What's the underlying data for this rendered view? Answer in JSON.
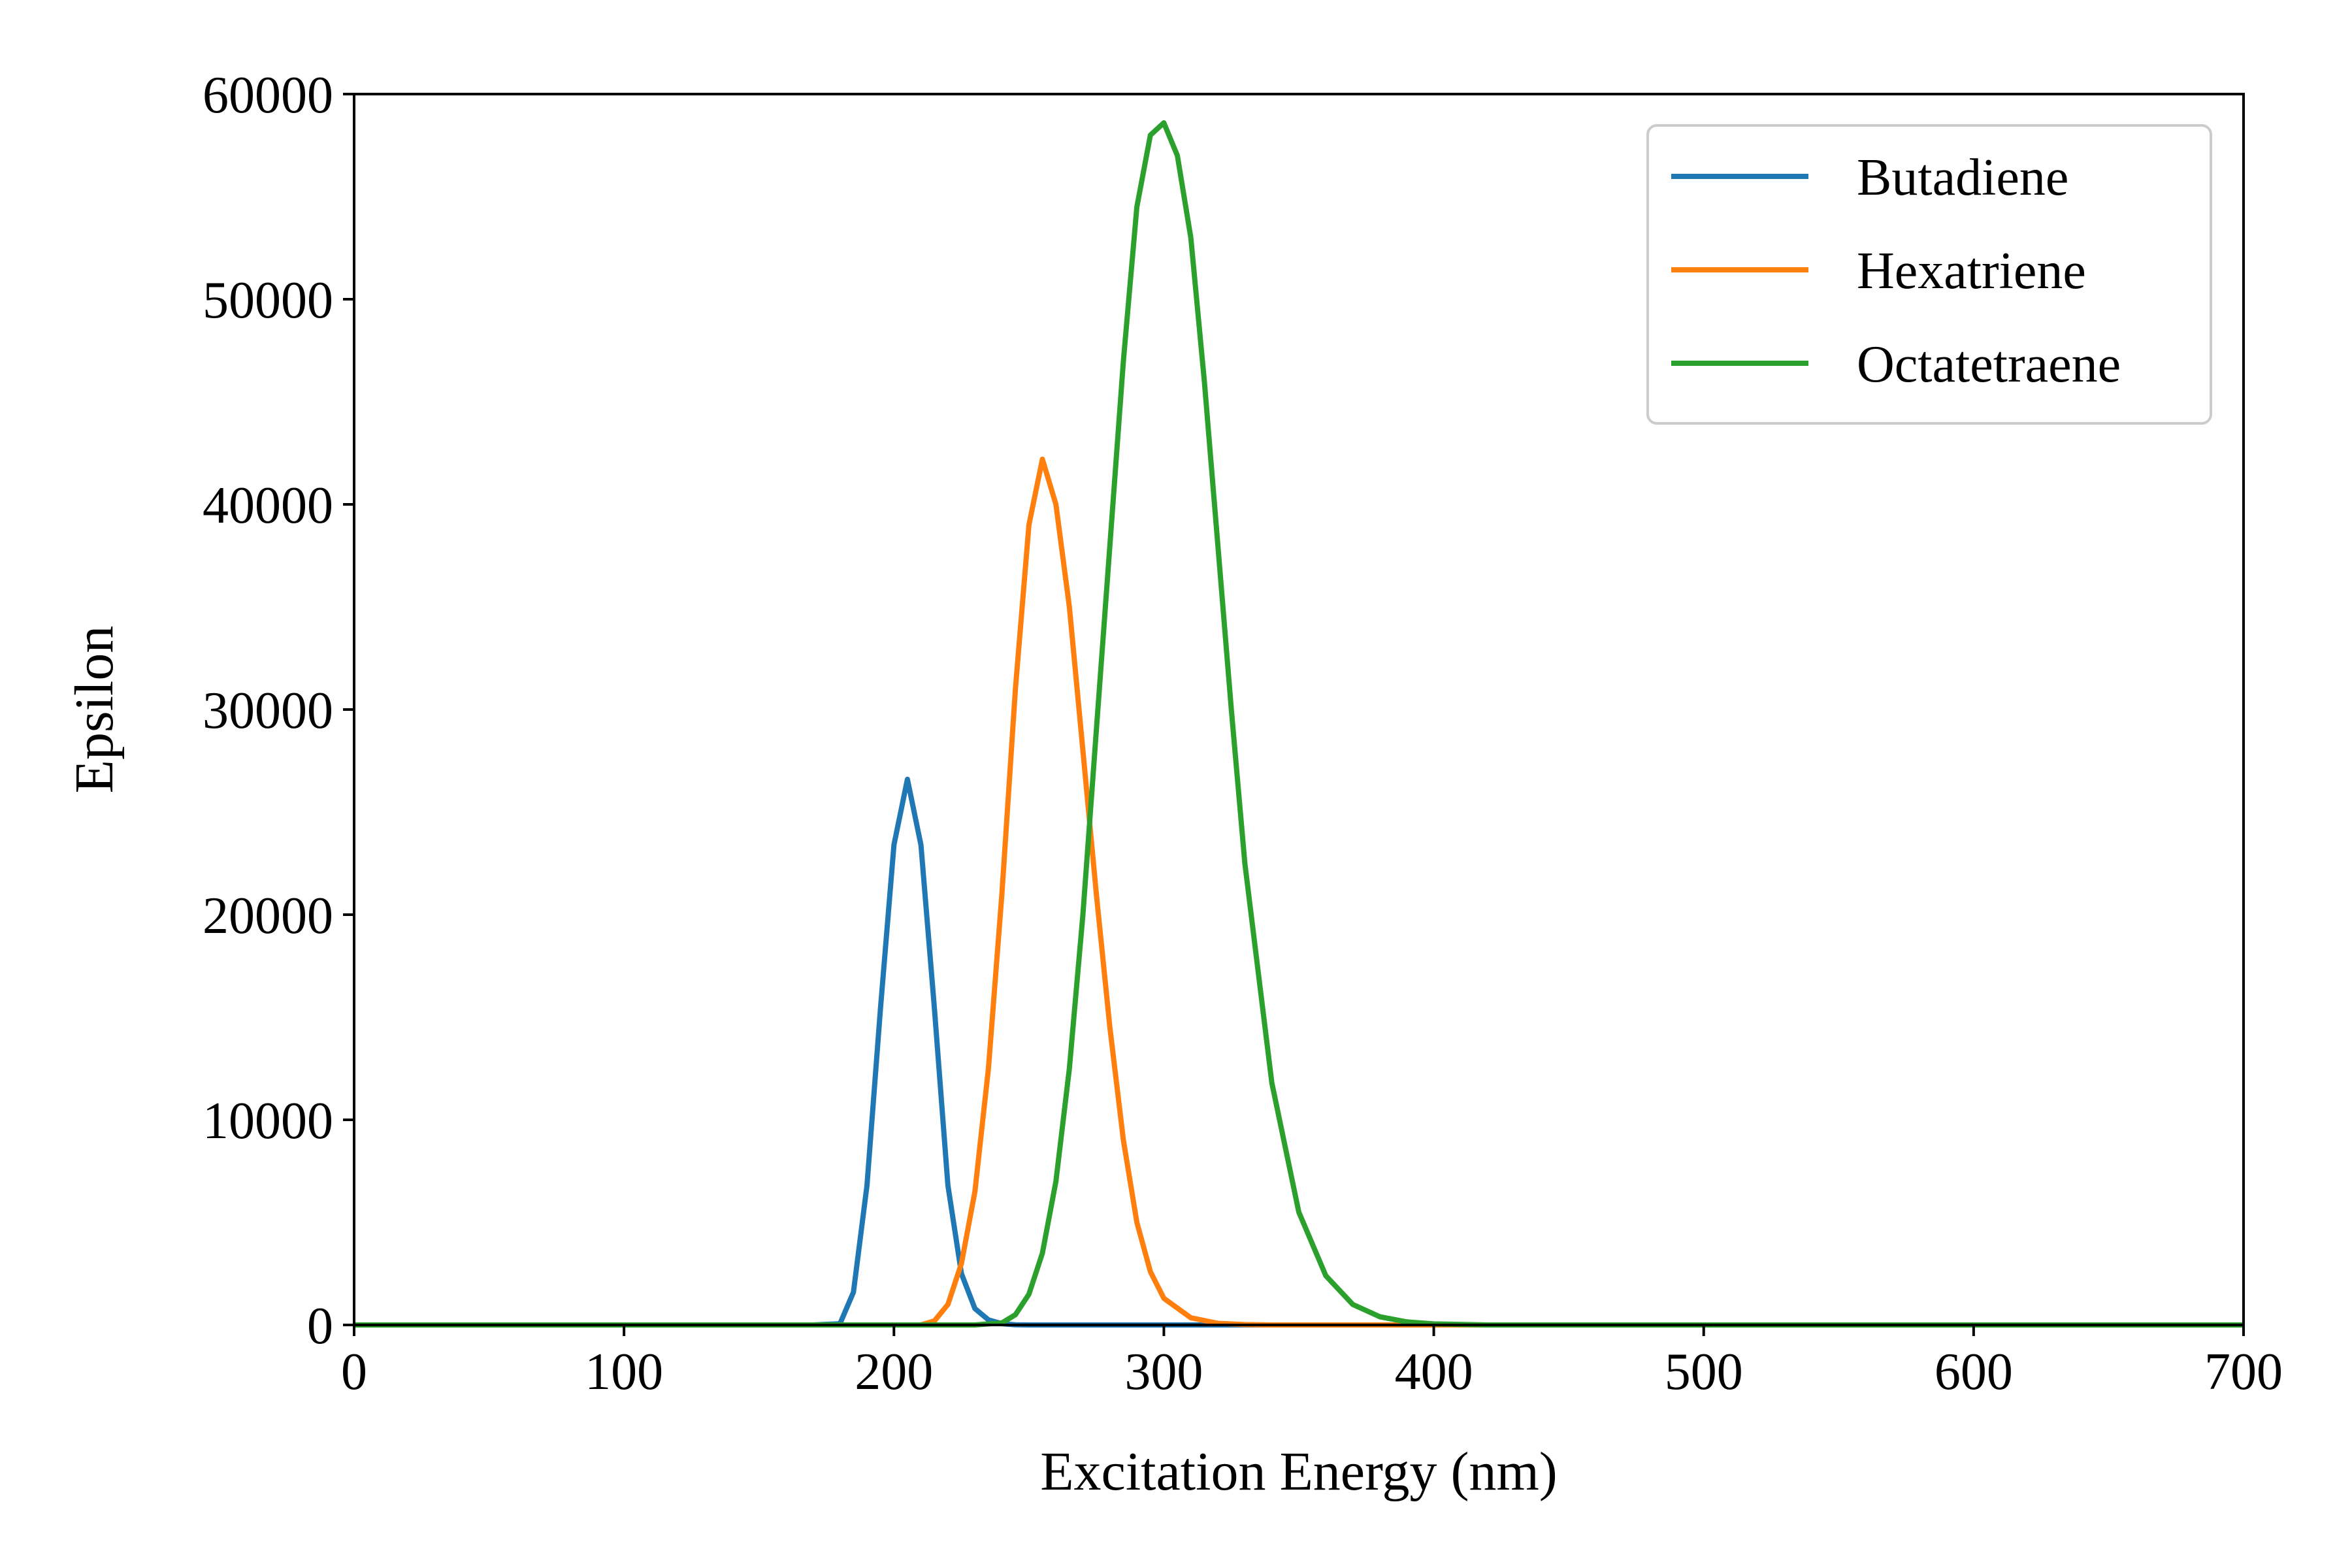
{
  "chart_data": {
    "type": "line",
    "xlabel": "Excitation Energy (nm)",
    "ylabel": "Epsilon",
    "xlim": [
      0,
      700
    ],
    "ylim": [
      0,
      60000
    ],
    "xticks": [
      "0",
      "100",
      "200",
      "300",
      "400",
      "500",
      "600",
      "700"
    ],
    "yticks": [
      "0",
      "10000",
      "20000",
      "30000",
      "40000",
      "50000",
      "60000"
    ],
    "grid": false,
    "legend_position": "top-right",
    "series": [
      {
        "name": "Butadiene",
        "color": "#1f77b4",
        "x": [
          0,
          150,
          170,
          180,
          185,
          190,
          195,
          200,
          205,
          210,
          215,
          220,
          225,
          230,
          235,
          240,
          245,
          250,
          700
        ],
        "y": [
          0,
          0,
          0,
          60,
          1600,
          6800,
          15400,
          23400,
          26600,
          23400,
          15400,
          6800,
          2500,
          800,
          250,
          60,
          10,
          0,
          0
        ]
      },
      {
        "name": "Hexatriene",
        "color": "#ff7f0e",
        "x": [
          0,
          200,
          210,
          215,
          220,
          225,
          230,
          235,
          240,
          245,
          250,
          255,
          260,
          265,
          270,
          275,
          280,
          285,
          290,
          295,
          300,
          310,
          320,
          330,
          340,
          700
        ],
        "y": [
          0,
          0,
          0,
          200,
          1000,
          3000,
          6500,
          12500,
          21000,
          31000,
          39000,
          42200,
          40000,
          35000,
          28000,
          21000,
          14500,
          9000,
          5000,
          2600,
          1300,
          350,
          80,
          20,
          0,
          0
        ]
      },
      {
        "name": "Octatetraene",
        "color": "#2ca02c",
        "x": [
          0,
          230,
          240,
          245,
          250,
          255,
          260,
          265,
          270,
          275,
          280,
          285,
          290,
          295,
          300,
          305,
          310,
          315,
          320,
          325,
          330,
          340,
          350,
          360,
          370,
          380,
          390,
          400,
          420,
          700
        ],
        "y": [
          0,
          0,
          100,
          500,
          1500,
          3500,
          7000,
          12500,
          20000,
          29000,
          38000,
          47000,
          54500,
          58000,
          58600,
          57000,
          53000,
          46000,
          38000,
          30000,
          22500,
          11800,
          5500,
          2400,
          1000,
          400,
          150,
          50,
          0,
          0
        ]
      }
    ]
  }
}
